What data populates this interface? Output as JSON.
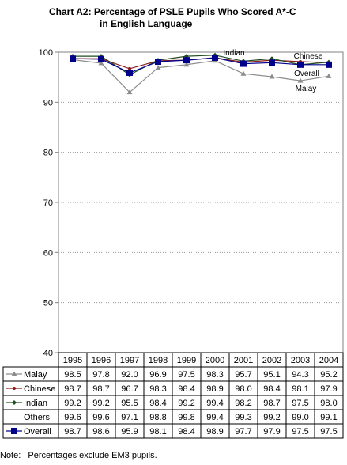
{
  "title": {
    "line1": "Chart A2:  Percentage of PSLE Pupils Who Scored A*-C",
    "line2": "in English Language"
  },
  "chart_data": {
    "type": "line",
    "categories": [
      "1995",
      "1996",
      "1997",
      "1998",
      "1999",
      "2000",
      "2001",
      "2002",
      "2003",
      "2004"
    ],
    "ylim": [
      40,
      100
    ],
    "yticks": [
      40,
      50,
      60,
      70,
      80,
      90,
      100
    ],
    "grid": true,
    "series": [
      {
        "name": "Malay",
        "values": [
          98.5,
          97.8,
          92.0,
          96.9,
          97.5,
          98.3,
          95.7,
          95.1,
          94.3,
          95.2
        ],
        "color": "#8c8c8c",
        "marker": "triangle",
        "plotted": true,
        "label_key": "malay"
      },
      {
        "name": "Chinese",
        "values": [
          98.7,
          98.7,
          96.7,
          98.3,
          98.4,
          98.9,
          98.0,
          98.4,
          98.1,
          97.9
        ],
        "color": "#8b1a1a",
        "marker": "dot",
        "plotted": true,
        "label_key": "chinese"
      },
      {
        "name": "Indian",
        "values": [
          99.2,
          99.2,
          95.5,
          98.4,
          99.2,
          99.4,
          98.2,
          98.7,
          97.5,
          98.0
        ],
        "color": "#1f4d1f",
        "marker": "diamond",
        "plotted": true,
        "label_key": "indian"
      },
      {
        "name": "Others",
        "values": [
          99.6,
          99.6,
          97.1,
          98.8,
          99.8,
          99.4,
          99.3,
          99.2,
          99.0,
          99.1
        ],
        "color": "#000000",
        "marker": "none",
        "plotted": false
      },
      {
        "name": "Overall",
        "values": [
          98.7,
          98.6,
          95.9,
          98.1,
          98.4,
          98.9,
          97.7,
          97.9,
          97.5,
          97.5
        ],
        "color": "#00008b",
        "marker": "square",
        "plotted": true,
        "label_key": "overall"
      }
    ],
    "annotations": {
      "indian": "Indian",
      "chinese": "Chinese",
      "overall": "Overall",
      "malay": "Malay"
    }
  },
  "note": {
    "label": "Note:",
    "text": "Percentages exclude EM3 pupils."
  }
}
